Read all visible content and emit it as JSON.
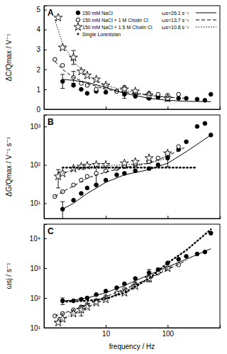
{
  "chart_data": [
    {
      "type": "scatter",
      "title": "A",
      "y_label": "ΔC/Qmax / V⁻¹",
      "log": "x",
      "tick_labels": "y",
      "legend": "top-right",
      "xlim": [
        1,
        700
      ],
      "xticks": [
        10,
        100
      ],
      "ylim": [
        0,
        5.2
      ],
      "yticks": [
        0,
        1,
        2,
        3,
        4,
        5
      ],
      "series": [
        {
          "name": "150 mM NaCl",
          "type": "scatter",
          "marker": "filled_circle",
          "color": "#000000",
          "x": [
            2,
            3,
            4,
            5,
            7,
            10,
            15,
            20,
            30,
            50,
            70,
            100,
            150,
            200,
            300,
            400,
            500
          ],
          "values": [
            1.4,
            1.2,
            1.0,
            0.8,
            0.9,
            0.85,
            0.9,
            0.75,
            0.65,
            0.55,
            0.6,
            0.5,
            0.55,
            0.55,
            0.5,
            0.45,
            0.75
          ],
          "errors": [
            0.35,
            null,
            null,
            null,
            null,
            null,
            null,
            0.2,
            null,
            null,
            null,
            null,
            null,
            null,
            null,
            null,
            null
          ]
        },
        {
          "name": "150 mM NaCl + 1 M Cholin Cl",
          "type": "scatter",
          "marker": "open_circle",
          "color": "#000000",
          "x": [
            1.5,
            2,
            3,
            4,
            5,
            7,
            10,
            15,
            20,
            30,
            50,
            70,
            100,
            150
          ],
          "values": [
            2.5,
            2.2,
            1.6,
            1.3,
            1.2,
            1.0,
            1.2,
            0.9,
            1.1,
            0.85,
            0.8,
            0.75,
            0.7,
            0.75
          ],
          "errors": [
            null,
            null,
            0.3,
            null,
            null,
            null,
            null,
            null,
            null,
            null,
            null,
            null,
            null,
            null
          ]
        },
        {
          "name": "150 mM NaCl + 1.5 M Cholin Cl",
          "type": "scatter",
          "marker": "star",
          "color": "#000000",
          "x": [
            1.7,
            2,
            3,
            4,
            5,
            7,
            10,
            20,
            30,
            50,
            100
          ],
          "values": [
            4.6,
            3.1,
            2.6,
            1.9,
            1.7,
            1.5,
            1.2,
            1.0,
            0.9,
            0.7,
            0.55
          ],
          "errors": [
            null,
            null,
            0.35,
            null,
            null,
            null,
            null,
            null,
            null,
            null,
            null
          ]
        },
        {
          "name": "ωs=26.1 s⁻¹",
          "type": "line",
          "line_style": "solid",
          "color": "#000000",
          "x": [
            2,
            3,
            5,
            10,
            20,
            50,
            100,
            200,
            500
          ],
          "values": [
            1.5,
            1.45,
            1.35,
            1.1,
            0.8,
            0.55,
            0.45,
            0.4,
            0.38
          ]
        },
        {
          "name": "ωs=13.7 s⁻¹",
          "type": "line",
          "line_style": "dashed",
          "color": "#000000",
          "x": [
            1.5,
            2,
            3,
            5,
            10,
            20,
            50,
            100,
            200
          ],
          "values": [
            2.4,
            2.0,
            1.6,
            1.3,
            1.0,
            0.85,
            0.7,
            0.6,
            0.55
          ]
        },
        {
          "name": "ωs=10.8 s⁻¹",
          "type": "line",
          "line_style": "dotted",
          "color": "#000000",
          "x": [
            1.5,
            2,
            3,
            5,
            10,
            20,
            50,
            100
          ],
          "values": [
            4.5,
            3.3,
            2.4,
            1.7,
            1.2,
            0.95,
            0.7,
            0.6
          ]
        }
      ]
    },
    {
      "type": "scatter",
      "title": "B",
      "y_label": "ΔG/Qmax / V⁻¹ s⁻¹",
      "log": true,
      "tick_labels": "y",
      "xlim": [
        1,
        700
      ],
      "xticks": [
        10,
        100
      ],
      "ylim": [
        4,
        2000
      ],
      "yticks": [
        {
          "value": 10,
          "label": "10¹"
        },
        {
          "value": 100,
          "label": "10²"
        },
        {
          "value": 1000,
          "label": "10³"
        }
      ],
      "series": [
        {
          "type": "scatter",
          "marker": "filled_circle",
          "color": "#000000",
          "x": [
            2,
            3,
            4,
            5,
            7,
            10,
            15,
            20,
            30,
            50,
            70,
            100,
            150,
            200,
            300,
            400,
            500
          ],
          "values": [
            7,
            12,
            18,
            25,
            30,
            40,
            55,
            60,
            70,
            80,
            100,
            150,
            250,
            400,
            1000,
            1200,
            600
          ],
          "errors": [
            4,
            null,
            null,
            null,
            null,
            null,
            null,
            null,
            null,
            null,
            null,
            60,
            null,
            null,
            null,
            null,
            null
          ]
        },
        {
          "type": "scatter",
          "marker": "open_circle",
          "color": "#000000",
          "x": [
            1.5,
            2,
            3,
            4,
            5,
            7,
            10,
            15,
            20,
            30,
            50,
            70,
            100,
            150
          ],
          "values": [
            15,
            20,
            30,
            40,
            50,
            60,
            70,
            80,
            90,
            100,
            120,
            150,
            200,
            300
          ],
          "errors": [
            null,
            null,
            null,
            null,
            null,
            30,
            null,
            null,
            null,
            null,
            null,
            null,
            null,
            null
          ]
        },
        {
          "type": "scatter",
          "marker": "star",
          "color": "#000000",
          "x": [
            1.7,
            2,
            3,
            4,
            5,
            7,
            10,
            20,
            30,
            50,
            100
          ],
          "values": [
            50,
            60,
            80,
            90,
            95,
            100,
            100,
            110,
            120,
            150,
            200
          ],
          "errors": [
            25,
            null,
            null,
            null,
            null,
            null,
            null,
            null,
            null,
            null,
            null
          ]
        },
        {
          "type": "line",
          "line_style": "solid",
          "color": "#000000",
          "x": [
            2,
            3,
            5,
            10,
            20,
            50,
            100,
            200,
            500
          ],
          "values": [
            7,
            10,
            18,
            35,
            55,
            75,
            110,
            220,
            600
          ]
        },
        {
          "type": "line",
          "line_style": "dashed",
          "color": "#000000",
          "x": [
            1.5,
            2,
            3,
            5,
            10,
            20,
            50,
            100,
            200
          ],
          "values": [
            15,
            20,
            28,
            45,
            65,
            85,
            110,
            170,
            300
          ]
        },
        {
          "type": "line",
          "line_style": "dotted",
          "color": "#000000",
          "x": [
            2,
            3,
            5,
            10,
            20,
            50,
            100
          ],
          "values": [
            60,
            75,
            88,
            95,
            100,
            110,
            150
          ]
        },
        {
          "name": "Single Lorentzian",
          "type": "line",
          "line_style": "dotted",
          "marker": "dot",
          "color": "#000000",
          "x": [
            2,
            5,
            10,
            50,
            100,
            300
          ],
          "values": [
            85,
            85,
            85,
            85,
            85,
            85
          ]
        }
      ]
    },
    {
      "type": "scatter",
      "title": "C",
      "y_label": "ωsj / s⁻¹",
      "x_label": "frequency / Hz",
      "log": true,
      "xlim": [
        1,
        700
      ],
      "xticks": [
        10,
        100
      ],
      "ylim": [
        10,
        30000
      ],
      "yticks": [
        {
          "value": 10,
          "label": "10¹"
        },
        {
          "value": 100,
          "label": "10²"
        },
        {
          "value": 1000,
          "label": "10³"
        },
        {
          "value": 10000,
          "label": "10⁴"
        }
      ],
      "series": [
        {
          "type": "scatter",
          "marker": "filled_circle",
          "color": "#000000",
          "x": [
            2,
            3,
            4,
            5,
            7,
            10,
            15,
            20,
            30,
            50,
            70,
            100,
            150,
            200,
            300,
            400,
            500
          ],
          "values": [
            80,
            80,
            90,
            100,
            130,
            170,
            220,
            300,
            450,
            700,
            900,
            1500,
            2000,
            2500,
            3000,
            3500,
            15000
          ],
          "errors": [
            20,
            null,
            null,
            null,
            null,
            null,
            null,
            null,
            null,
            200,
            null,
            null,
            null,
            null,
            null,
            null,
            null
          ]
        },
        {
          "type": "scatter",
          "marker": "open_circle",
          "color": "#000000",
          "x": [
            1.5,
            2,
            3,
            4,
            5,
            7,
            10,
            15,
            20,
            30,
            50,
            70,
            100,
            150
          ],
          "values": [
            25,
            30,
            40,
            50,
            60,
            80,
            110,
            150,
            200,
            300,
            500,
            700,
            1000,
            1300
          ],
          "errors": [
            null,
            null,
            null,
            null,
            null,
            null,
            null,
            null,
            null,
            null,
            150,
            null,
            null,
            null
          ]
        },
        {
          "type": "scatter",
          "marker": "star",
          "color": "#000000",
          "x": [
            1.7,
            2,
            3,
            4,
            5,
            7,
            10,
            20,
            30,
            50,
            100
          ],
          "values": [
            15,
            20,
            30,
            40,
            50,
            70,
            90,
            150,
            250,
            450,
            1000
          ],
          "errors": [
            null,
            null,
            null,
            15,
            null,
            null,
            null,
            null,
            null,
            null,
            null
          ]
        },
        {
          "type": "line",
          "line_style": "solid",
          "color": "#000000",
          "x": [
            2,
            3,
            5,
            10,
            20,
            50,
            100,
            200,
            500
          ],
          "values": [
            80,
            85,
            100,
            150,
            260,
            600,
            1100,
            2000,
            4500
          ]
        },
        {
          "type": "line",
          "line_style": "dashed",
          "color": "#000000",
          "x": [
            1.5,
            2,
            3,
            5,
            10,
            20,
            50,
            100,
            200
          ],
          "values": [
            25,
            30,
            40,
            60,
            110,
            200,
            450,
            900,
            1800
          ]
        },
        {
          "type": "line",
          "line_style": "dotted",
          "color": "#000000",
          "x": [
            1.5,
            2,
            3,
            5,
            10,
            20,
            50,
            100
          ],
          "values": [
            15,
            20,
            30,
            50,
            90,
            180,
            450,
            1000
          ]
        },
        {
          "type": "line",
          "line_style": "dotted",
          "marker": "dot",
          "color": "#000000",
          "x": [
            2,
            5,
            10,
            20,
            50,
            100,
            200,
            500
          ],
          "values": [
            75,
            80,
            95,
            150,
            450,
            1500,
            4000,
            20000
          ]
        }
      ]
    }
  ]
}
